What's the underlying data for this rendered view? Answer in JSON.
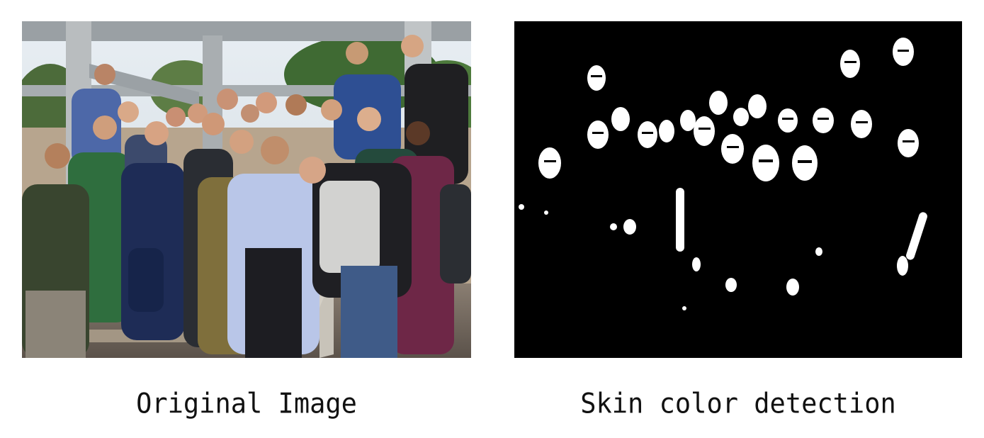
{
  "panels": {
    "left": {
      "caption": "Original Image"
    },
    "right": {
      "caption": "Skin color detection"
    }
  },
  "colors": {
    "background": "#ffffff",
    "mask_background": "#000000",
    "mask_foreground": "#ffffff",
    "caption_text": "#111111"
  }
}
